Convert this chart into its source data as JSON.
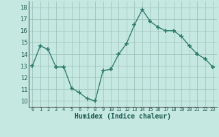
{
  "x": [
    0,
    1,
    2,
    3,
    4,
    5,
    6,
    7,
    8,
    9,
    10,
    11,
    12,
    13,
    14,
    15,
    16,
    17,
    18,
    19,
    20,
    21,
    22,
    23
  ],
  "y": [
    13.0,
    14.7,
    14.4,
    12.9,
    12.9,
    11.1,
    10.7,
    10.2,
    10.0,
    12.6,
    12.7,
    14.0,
    14.9,
    16.5,
    17.8,
    16.8,
    16.3,
    16.0,
    16.0,
    15.5,
    14.7,
    14.0,
    13.6,
    12.9
  ],
  "xlabel": "Humidex (Indice chaleur)",
  "xlim": [
    -0.5,
    23.5
  ],
  "ylim": [
    9.5,
    18.5
  ],
  "yticks": [
    10,
    11,
    12,
    13,
    14,
    15,
    16,
    17,
    18
  ],
  "xticks": [
    0,
    1,
    2,
    3,
    4,
    5,
    6,
    7,
    8,
    9,
    10,
    11,
    12,
    13,
    14,
    15,
    16,
    17,
    18,
    19,
    20,
    21,
    22,
    23
  ],
  "xtick_labels": [
    "0",
    "1",
    "2",
    "3",
    "4",
    "5",
    "6",
    "7",
    "8",
    "9",
    "10",
    "11",
    "12",
    "13",
    "14",
    "15",
    "16",
    "17",
    "18",
    "19",
    "20",
    "21",
    "22",
    "23"
  ],
  "line_color": "#2e7d6b",
  "marker": "+",
  "marker_size": 4,
  "bg_color": "#c5e8e0",
  "grid_color": "#9bbfb8",
  "fig_bg": "#c5e8e0"
}
